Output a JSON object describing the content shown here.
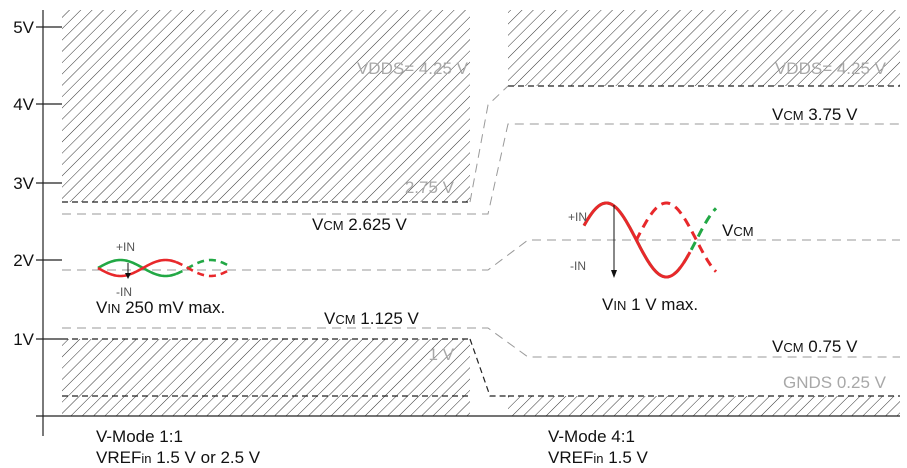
{
  "axis": {
    "ticks": [
      "5V",
      "4V",
      "3V",
      "2V",
      "1V"
    ]
  },
  "left": {
    "vdds_label": "VDDS= 4.25 V",
    "upper_limit_label": "2.75 V",
    "lower_limit_label": "1 V",
    "vcm_high": {
      "prefix": "V",
      "sub": "CM",
      "value": " 2.625 V"
    },
    "vcm_low": {
      "prefix": "V",
      "sub": "CM",
      "value": " 1.125 V"
    },
    "plus_in": "+IN",
    "minus_in": "-IN",
    "vin": {
      "prefix": "V",
      "sub": "IN",
      "value": " 250 mV max."
    },
    "mode_line1": "V-Mode 1:1",
    "mode_line2": {
      "prefix": "VREF",
      "sub": "in",
      "value": " 1.5 V or 2.5 V"
    }
  },
  "right": {
    "vdds_label": "VDDS= 4.25 V",
    "gnds_label": "GNDS 0.25 V",
    "vcm_high": {
      "prefix": "V",
      "sub": "CM",
      "value": " 3.75 V"
    },
    "vcm_low": {
      "prefix": "V",
      "sub": "CM",
      "value": " 0.75 V"
    },
    "vcm_mid": {
      "prefix": "V",
      "sub": "CM"
    },
    "plus_in": "+IN",
    "minus_in": "-IN",
    "vin": {
      "prefix": "V",
      "sub": "IN",
      "value": " 1 V max."
    },
    "mode_line1": "V-Mode 4:1",
    "mode_line2": {
      "prefix": "VREF",
      "sub": "in",
      "value": " 1.5 V"
    }
  },
  "colors": {
    "red": "#e8282b",
    "green": "#22a845",
    "hatch": "#333333",
    "dash": "#9a9a9a",
    "gray_label": "#a8a8a8"
  }
}
